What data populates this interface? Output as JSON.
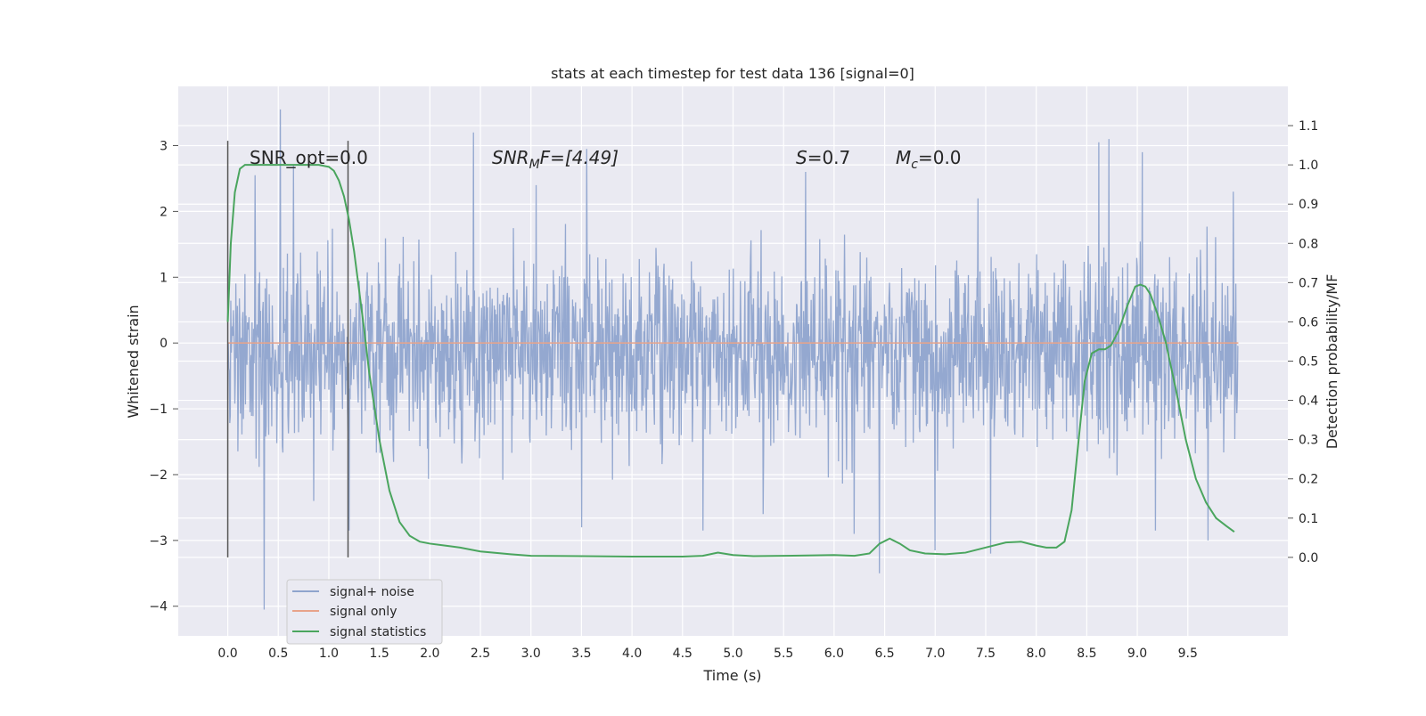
{
  "chart_data": {
    "type": "line",
    "title": "stats at each timestep for test data 136 [signal=0]",
    "xlabel": "Time (s)",
    "ylabel_left": "Whitened strain",
    "ylabel_right": "Detection probability/MF",
    "xlim": [
      -0.49,
      10.49
    ],
    "ylim_left": [
      -4.45,
      3.9
    ],
    "ylim_right": [
      -0.2,
      1.2
    ],
    "x_ticks": [
      "0.0",
      "0.5",
      "1.0",
      "1.5",
      "2.0",
      "2.5",
      "3.0",
      "3.5",
      "4.0",
      "4.5",
      "5.0",
      "5.5",
      "6.0",
      "6.5",
      "7.0",
      "7.5",
      "8.0",
      "8.5",
      "9.0",
      "9.5"
    ],
    "y_ticks_left": [
      "−4",
      "−3",
      "−2",
      "−1",
      "0",
      "1",
      "2",
      "3"
    ],
    "y_ticks_right": [
      "0.0",
      "0.1",
      "0.2",
      "0.3",
      "0.4",
      "0.5",
      "0.6",
      "0.7",
      "0.8",
      "0.9",
      "1.0",
      "1.1"
    ],
    "grid": true,
    "legend_position": "lower-left",
    "annotations": {
      "snr_opt": "SNR_opt=0.0",
      "snr_mf_sym": "SNR",
      "snr_mf_sub": "M",
      "snr_mf_rest": "F=[4.49]",
      "s_sym": "S",
      "s_rest": "=0.7",
      "mc_sym": "M",
      "mc_sub": "c",
      "mc_rest": "=0.0"
    },
    "vertical_markers": [
      0.0,
      1.19
    ],
    "series": [
      {
        "name": "signal+ noise",
        "color": "#8fa4cd",
        "axis": "left",
        "t_range": [
          0.0,
          10.0
        ],
        "typical_band": [
          -1.9,
          1.55
        ],
        "extremes": [
          {
            "t": 0.36,
            "v": -4.05
          },
          {
            "t": 0.52,
            "v": 3.55
          },
          {
            "t": 0.65,
            "v": 2.7
          },
          {
            "t": 0.27,
            "v": 2.55
          },
          {
            "t": 2.43,
            "v": 3.2
          },
          {
            "t": 3.55,
            "v": 2.95
          },
          {
            "t": 3.05,
            "v": 2.4
          },
          {
            "t": 5.72,
            "v": 2.6
          },
          {
            "t": 6.45,
            "v": -3.5
          },
          {
            "t": 7.55,
            "v": -3.2
          },
          {
            "t": 8.62,
            "v": 3.05
          },
          {
            "t": 8.72,
            "v": 3.1
          },
          {
            "t": 9.05,
            "v": 2.9
          },
          {
            "t": 9.18,
            "v": -2.85
          },
          {
            "t": 9.7,
            "v": -3.0
          },
          {
            "t": 1.2,
            "v": -2.85
          },
          {
            "t": 0.85,
            "v": -2.4
          },
          {
            "t": 3.5,
            "v": -2.8
          },
          {
            "t": 4.7,
            "v": -2.85
          },
          {
            "t": 5.3,
            "v": -2.6
          },
          {
            "t": 6.2,
            "v": -2.9
          },
          {
            "t": 7.0,
            "v": -3.15
          },
          {
            "t": 9.95,
            "v": 2.3
          }
        ]
      },
      {
        "name": "signal only",
        "color": "#e8a38a",
        "axis": "left",
        "x": [
          0.0,
          10.0
        ],
        "values": [
          0.0,
          0.0
        ]
      },
      {
        "name": "signal statistics",
        "color": "#4aa55e",
        "axis": "right",
        "x": [
          0.0,
          0.03,
          0.07,
          0.12,
          0.17,
          0.25,
          0.4,
          0.6,
          0.8,
          0.9,
          1.0,
          1.05,
          1.1,
          1.15,
          1.2,
          1.25,
          1.3,
          1.35,
          1.4,
          1.5,
          1.6,
          1.7,
          1.8,
          1.9,
          2.0,
          2.15,
          2.3,
          2.5,
          2.8,
          3.0,
          3.5,
          4.0,
          4.5,
          4.7,
          4.85,
          5.0,
          5.2,
          5.5,
          5.8,
          6.0,
          6.2,
          6.35,
          6.45,
          6.55,
          6.65,
          6.75,
          6.9,
          7.1,
          7.3,
          7.5,
          7.7,
          7.85,
          8.0,
          8.1,
          8.2,
          8.28,
          8.35,
          8.42,
          8.48,
          8.55,
          8.62,
          8.68,
          8.74,
          8.82,
          8.9,
          8.98,
          9.03,
          9.08,
          9.13,
          9.2,
          9.28,
          9.38,
          9.48,
          9.58,
          9.68,
          9.78,
          9.88,
          9.96
        ],
        "values": [
          0.6,
          0.8,
          0.93,
          0.99,
          1.0,
          1.0,
          1.0,
          1.0,
          1.0,
          1.0,
          0.995,
          0.985,
          0.96,
          0.92,
          0.86,
          0.78,
          0.68,
          0.58,
          0.47,
          0.3,
          0.17,
          0.09,
          0.055,
          0.04,
          0.035,
          0.03,
          0.025,
          0.015,
          0.008,
          0.004,
          0.003,
          0.002,
          0.002,
          0.004,
          0.012,
          0.006,
          0.003,
          0.004,
          0.005,
          0.006,
          0.004,
          0.01,
          0.035,
          0.048,
          0.035,
          0.018,
          0.01,
          0.008,
          0.012,
          0.025,
          0.038,
          0.04,
          0.03,
          0.025,
          0.025,
          0.04,
          0.12,
          0.3,
          0.45,
          0.52,
          0.53,
          0.53,
          0.54,
          0.58,
          0.64,
          0.69,
          0.695,
          0.69,
          0.67,
          0.62,
          0.55,
          0.43,
          0.3,
          0.2,
          0.14,
          0.1,
          0.08,
          0.065
        ]
      }
    ]
  }
}
